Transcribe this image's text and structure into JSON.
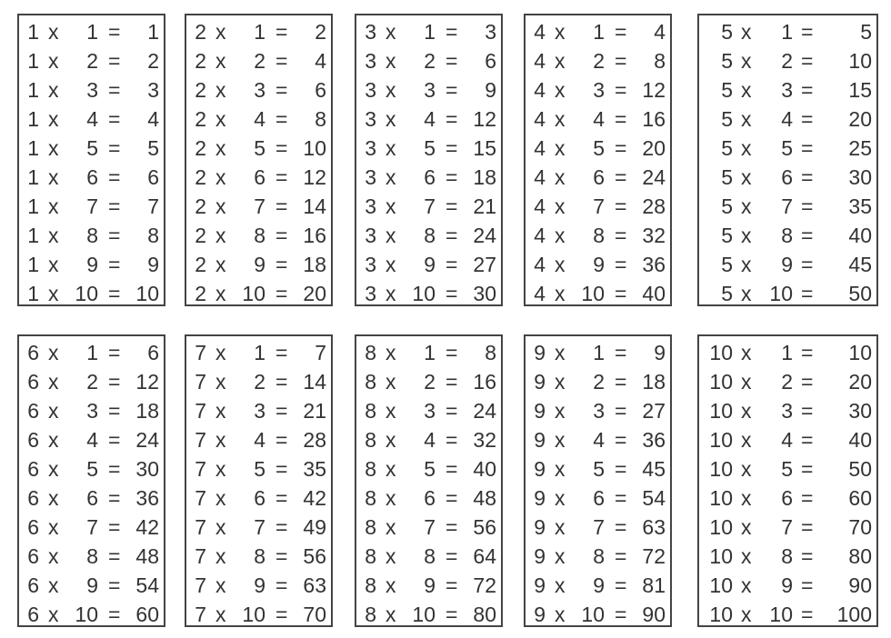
{
  "symbols": {
    "times": "x",
    "equals": "="
  },
  "tables": [
    {
      "multiplier": "1",
      "rows": [
        [
          "1",
          "1"
        ],
        [
          "2",
          "2"
        ],
        [
          "3",
          "3"
        ],
        [
          "4",
          "4"
        ],
        [
          "5",
          "5"
        ],
        [
          "6",
          "6"
        ],
        [
          "7",
          "7"
        ],
        [
          "8",
          "8"
        ],
        [
          "9",
          "9"
        ],
        [
          "10",
          "10"
        ]
      ]
    },
    {
      "multiplier": "2",
      "rows": [
        [
          "1",
          "2"
        ],
        [
          "2",
          "4"
        ],
        [
          "3",
          "6"
        ],
        [
          "4",
          "8"
        ],
        [
          "5",
          "10"
        ],
        [
          "6",
          "12"
        ],
        [
          "7",
          "14"
        ],
        [
          "8",
          "16"
        ],
        [
          "9",
          "18"
        ],
        [
          "10",
          "20"
        ]
      ]
    },
    {
      "multiplier": "3",
      "rows": [
        [
          "1",
          "3"
        ],
        [
          "2",
          "6"
        ],
        [
          "3",
          "9"
        ],
        [
          "4",
          "12"
        ],
        [
          "5",
          "15"
        ],
        [
          "6",
          "18"
        ],
        [
          "7",
          "21"
        ],
        [
          "8",
          "24"
        ],
        [
          "9",
          "27"
        ],
        [
          "10",
          "30"
        ]
      ]
    },
    {
      "multiplier": "4",
      "rows": [
        [
          "1",
          "4"
        ],
        [
          "2",
          "8"
        ],
        [
          "3",
          "12"
        ],
        [
          "4",
          "16"
        ],
        [
          "5",
          "20"
        ],
        [
          "6",
          "24"
        ],
        [
          "7",
          "28"
        ],
        [
          "8",
          "32"
        ],
        [
          "9",
          "36"
        ],
        [
          "10",
          "40"
        ]
      ]
    },
    {
      "multiplier": "5",
      "rows": [
        [
          "1",
          "5"
        ],
        [
          "2",
          "10"
        ],
        [
          "3",
          "15"
        ],
        [
          "4",
          "20"
        ],
        [
          "5",
          "25"
        ],
        [
          "6",
          "30"
        ],
        [
          "7",
          "35"
        ],
        [
          "8",
          "40"
        ],
        [
          "9",
          "45"
        ],
        [
          "10",
          "50"
        ]
      ]
    },
    {
      "multiplier": "6",
      "rows": [
        [
          "1",
          "6"
        ],
        [
          "2",
          "12"
        ],
        [
          "3",
          "18"
        ],
        [
          "4",
          "24"
        ],
        [
          "5",
          "30"
        ],
        [
          "6",
          "36"
        ],
        [
          "7",
          "42"
        ],
        [
          "8",
          "48"
        ],
        [
          "9",
          "54"
        ],
        [
          "10",
          "60"
        ]
      ]
    },
    {
      "multiplier": "7",
      "rows": [
        [
          "1",
          "7"
        ],
        [
          "2",
          "14"
        ],
        [
          "3",
          "21"
        ],
        [
          "4",
          "28"
        ],
        [
          "5",
          "35"
        ],
        [
          "6",
          "42"
        ],
        [
          "7",
          "49"
        ],
        [
          "8",
          "56"
        ],
        [
          "9",
          "63"
        ],
        [
          "10",
          "70"
        ]
      ]
    },
    {
      "multiplier": "8",
      "rows": [
        [
          "1",
          "8"
        ],
        [
          "2",
          "16"
        ],
        [
          "3",
          "24"
        ],
        [
          "4",
          "32"
        ],
        [
          "5",
          "40"
        ],
        [
          "6",
          "48"
        ],
        [
          "7",
          "56"
        ],
        [
          "8",
          "64"
        ],
        [
          "9",
          "72"
        ],
        [
          "10",
          "80"
        ]
      ]
    },
    {
      "multiplier": "9",
      "rows": [
        [
          "1",
          "9"
        ],
        [
          "2",
          "18"
        ],
        [
          "3",
          "27"
        ],
        [
          "4",
          "36"
        ],
        [
          "5",
          "45"
        ],
        [
          "6",
          "54"
        ],
        [
          "7",
          "63"
        ],
        [
          "8",
          "72"
        ],
        [
          "9",
          "81"
        ],
        [
          "10",
          "90"
        ]
      ]
    },
    {
      "multiplier": "10",
      "rows": [
        [
          "1",
          "10"
        ],
        [
          "2",
          "20"
        ],
        [
          "3",
          "30"
        ],
        [
          "4",
          "40"
        ],
        [
          "5",
          "50"
        ],
        [
          "6",
          "60"
        ],
        [
          "7",
          "70"
        ],
        [
          "8",
          "80"
        ],
        [
          "9",
          "90"
        ],
        [
          "10",
          "100"
        ]
      ]
    }
  ]
}
